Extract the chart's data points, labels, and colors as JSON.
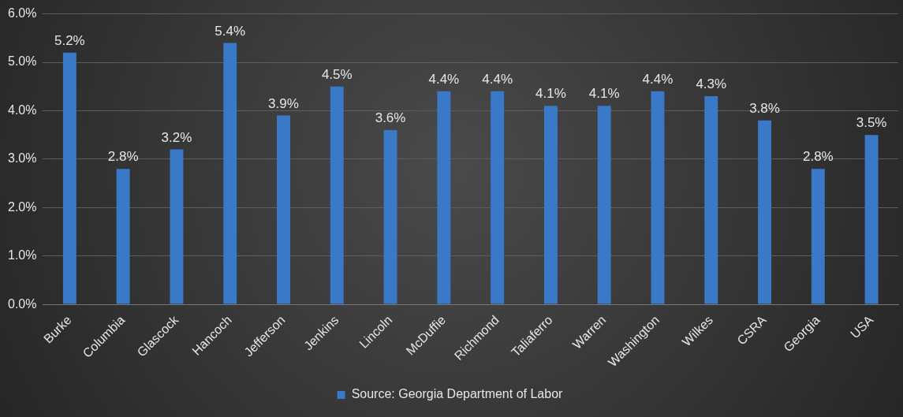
{
  "chart_data": {
    "type": "bar",
    "categories": [
      "Burke",
      "Columbia",
      "Glascock",
      "Hancoch",
      "Jefferson",
      "Jenkins",
      "Lincoln",
      "McDuffie",
      "Richmond",
      "Taliaferro",
      "Warren",
      "Washington",
      "Wilkes",
      "CSRA",
      "Georgia",
      "USA"
    ],
    "series": [
      {
        "name": "Source: Georgia Department of Labor",
        "color": "#3a78c8",
        "values": [
          5.2,
          2.8,
          3.2,
          5.4,
          3.9,
          4.5,
          3.6,
          4.4,
          4.4,
          4.1,
          4.1,
          4.4,
          4.3,
          3.8,
          2.8,
          3.5
        ],
        "value_labels": [
          "5.2%",
          "2.8%",
          "3.2%",
          "5.4%",
          "3.9%",
          "4.5%",
          "3.6%",
          "4.4%",
          "4.4%",
          "4.1%",
          "4.1%",
          "4.4%",
          "4.3%",
          "3.8%",
          "2.8%",
          "3.5%"
        ]
      }
    ],
    "ylim": [
      0,
      6
    ],
    "yticks": [
      {
        "value": 0,
        "label": "0.0%"
      },
      {
        "value": 1,
        "label": "1.0%"
      },
      {
        "value": 2,
        "label": "2.0%"
      },
      {
        "value": 3,
        "label": "3.0%"
      },
      {
        "value": 4,
        "label": "4.0%"
      },
      {
        "value": 5,
        "label": "5.0%"
      },
      {
        "value": 6,
        "label": "6.0%"
      }
    ],
    "grid": "y",
    "legend": "bottom"
  }
}
